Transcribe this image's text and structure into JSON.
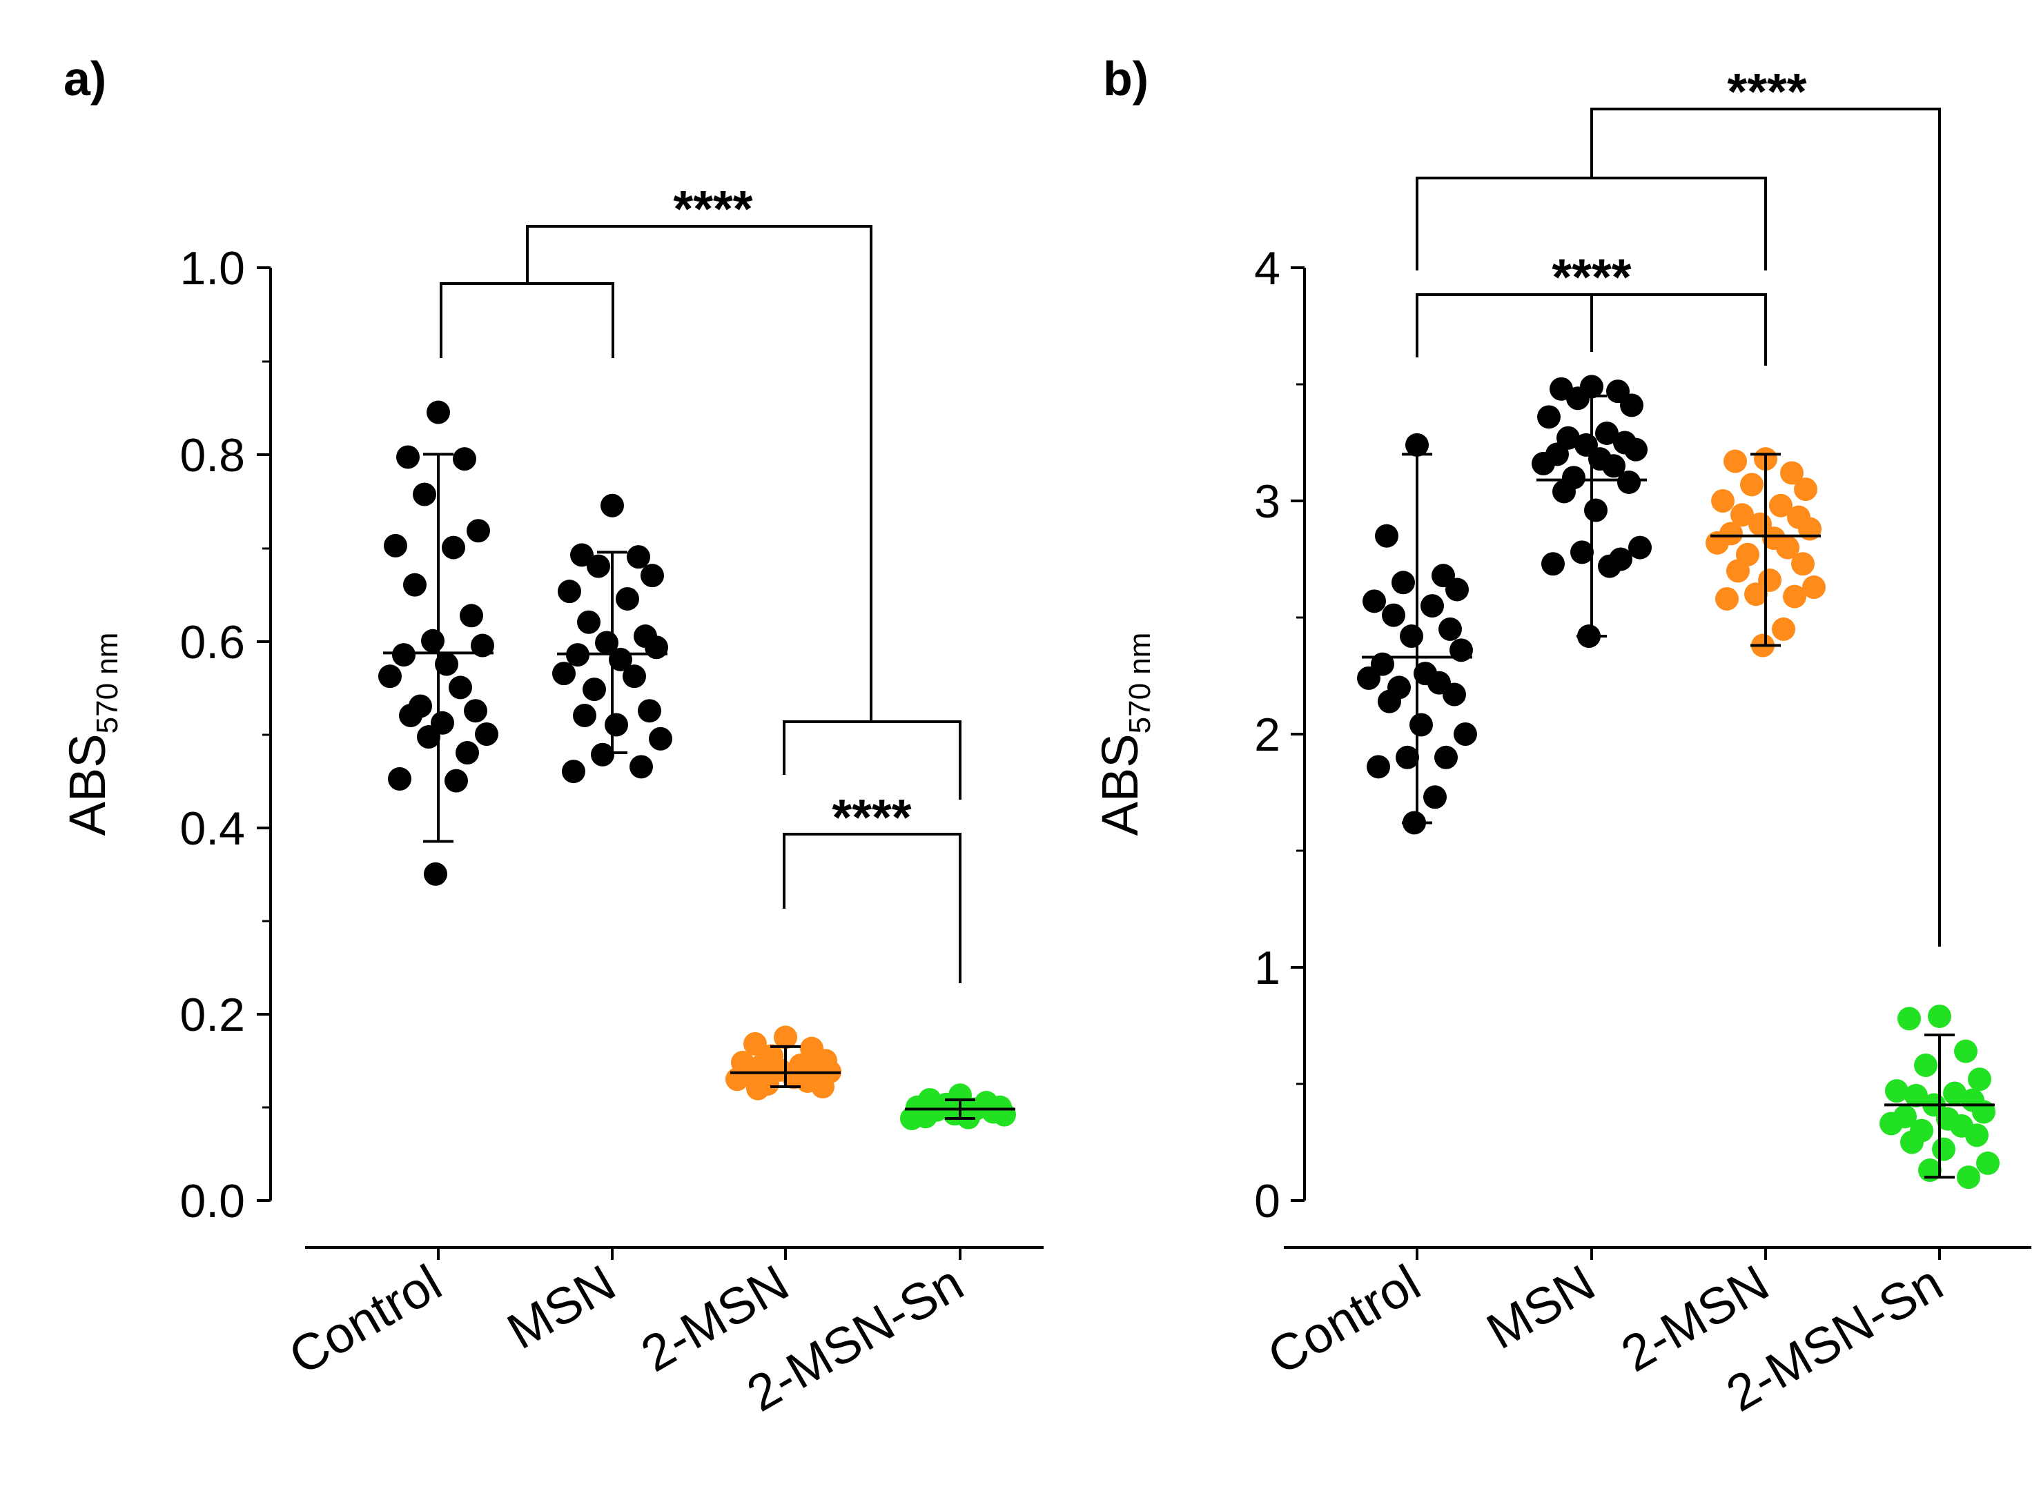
{
  "chart_data": [
    {
      "type": "scatter",
      "panel_label": "a)",
      "ylabel": "ABS",
      "ylabel_subscript": "570 nm",
      "categories": [
        "Control",
        "MSN",
        "2-MSN",
        "2-MSN-Sn"
      ],
      "ylim": [
        0.0,
        1.0
      ],
      "yticks": [
        "0.0",
        "0.2",
        "0.4",
        "0.6",
        "0.8",
        "1.0"
      ],
      "grid": false,
      "series": [
        {
          "category": "Control",
          "color": "#000000",
          "mean": 0.587,
          "error_low": 0.385,
          "error_high": 0.8,
          "points": [
            0.845,
            0.797,
            0.795,
            0.757,
            0.718,
            0.702,
            0.7,
            0.66,
            0.627,
            0.6,
            0.595,
            0.585,
            0.575,
            0.562,
            0.55,
            0.53,
            0.525,
            0.52,
            0.512,
            0.5,
            0.497,
            0.48,
            0.452,
            0.45,
            0.35
          ]
        },
        {
          "category": "MSN",
          "color": "#000000",
          "mean": 0.586,
          "error_low": 0.48,
          "error_high": 0.695,
          "points": [
            0.745,
            0.692,
            0.69,
            0.68,
            0.67,
            0.653,
            0.645,
            0.62,
            0.605,
            0.598,
            0.593,
            0.585,
            0.58,
            0.565,
            0.562,
            0.548,
            0.525,
            0.52,
            0.51,
            0.495,
            0.478,
            0.465,
            0.46
          ]
        },
        {
          "category": "2-MSN",
          "color": "#FF8C1A",
          "mean": 0.137,
          "error_low": 0.122,
          "error_high": 0.165,
          "points": [
            0.175,
            0.168,
            0.163,
            0.155,
            0.15,
            0.148,
            0.145,
            0.145,
            0.142,
            0.14,
            0.138,
            0.135,
            0.132,
            0.13,
            0.128,
            0.125,
            0.122,
            0.12
          ]
        },
        {
          "category": "2-MSN-Sn",
          "color": "#22E022",
          "mean": 0.098,
          "error_low": 0.088,
          "error_high": 0.108,
          "points": [
            0.113,
            0.108,
            0.105,
            0.103,
            0.1,
            0.1,
            0.098,
            0.097,
            0.095,
            0.093,
            0.092,
            0.09,
            0.089,
            0.088
          ]
        }
      ],
      "annotations": [
        {
          "text": "****",
          "from_groups": [
            "Control",
            "MSN"
          ],
          "to": "2-MSN-Sn"
        },
        {
          "text": "****",
          "from_groups": [
            "2-MSN"
          ],
          "to": "2-MSN-Sn"
        }
      ]
    },
    {
      "type": "scatter",
      "panel_label": "b)",
      "ylabel": "ABS",
      "ylabel_subscript": "570 nm",
      "categories": [
        "Control",
        "MSN",
        "2-MSN",
        "2-MSN-Sn"
      ],
      "ylim": [
        0,
        4
      ],
      "yticks": [
        "0",
        "1",
        "2",
        "3",
        "4"
      ],
      "grid": false,
      "series": [
        {
          "category": "Control",
          "color": "#000000",
          "mean": 2.33,
          "error_low": 1.62,
          "error_high": 3.2,
          "points": [
            3.24,
            2.85,
            2.68,
            2.65,
            2.62,
            2.57,
            2.55,
            2.51,
            2.45,
            2.42,
            2.36,
            2.3,
            2.26,
            2.24,
            2.22,
            2.2,
            2.17,
            2.14,
            2.04,
            2.0,
            1.9,
            1.9,
            1.86,
            1.73,
            1.62
          ]
        },
        {
          "category": "MSN",
          "color": "#000000",
          "mean": 3.09,
          "error_low": 2.42,
          "error_high": 3.45,
          "points": [
            3.49,
            3.48,
            3.47,
            3.44,
            3.41,
            3.36,
            3.29,
            3.27,
            3.25,
            3.24,
            3.22,
            3.2,
            3.18,
            3.16,
            3.15,
            3.1,
            3.08,
            3.04,
            2.96,
            2.8,
            2.78,
            2.75,
            2.73,
            2.72,
            2.42
          ]
        },
        {
          "category": "2-MSN",
          "color": "#FF8C1A",
          "mean": 2.85,
          "error_low": 2.38,
          "error_high": 3.2,
          "points": [
            3.18,
            3.17,
            3.12,
            3.07,
            3.05,
            3.0,
            2.98,
            2.94,
            2.93,
            2.9,
            2.88,
            2.86,
            2.84,
            2.82,
            2.8,
            2.77,
            2.73,
            2.7,
            2.66,
            2.63,
            2.6,
            2.59,
            2.58,
            2.45,
            2.38
          ]
        },
        {
          "category": "2-MSN-Sn",
          "color": "#22E022",
          "mean": 0.41,
          "error_low": 0.1,
          "error_high": 0.71,
          "points": [
            0.79,
            0.78,
            0.64,
            0.58,
            0.52,
            0.47,
            0.46,
            0.45,
            0.43,
            0.41,
            0.38,
            0.36,
            0.35,
            0.33,
            0.32,
            0.3,
            0.28,
            0.25,
            0.22,
            0.16,
            0.13,
            0.1
          ]
        }
      ],
      "annotations": [
        {
          "text": "****",
          "from_groups": [
            "Control",
            "2-MSN"
          ],
          "to": "MSN"
        },
        {
          "text": "****",
          "from_groups": [
            "Control",
            "MSN",
            "2-MSN"
          ],
          "to": "2-MSN-Sn"
        }
      ]
    }
  ]
}
